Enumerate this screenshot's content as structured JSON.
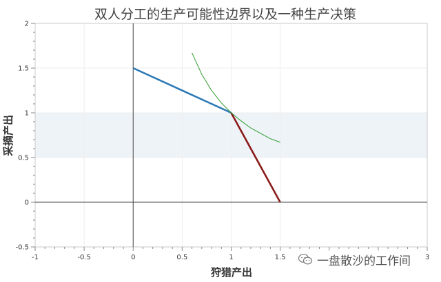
{
  "chart_data": {
    "type": "line",
    "title": "双人分工的生产可能性边界以及一种生产决策",
    "xlabel": "狩猎产出",
    "ylabel": "采摘产出",
    "xlim": [
      -1,
      3
    ],
    "ylim": [
      -0.5,
      2
    ],
    "x_ticks": [
      -1,
      -0.5,
      0,
      0.5,
      1,
      1.5,
      3
    ],
    "y_ticks": [
      -0.5,
      0,
      0.5,
      1,
      1.5,
      2
    ],
    "grid": true,
    "shaded_band": {
      "y_from": 0.5,
      "y_to": 1.0,
      "color": "#eef3f8"
    },
    "series": [
      {
        "points": [
          [
            0,
            1.5
          ],
          [
            1,
            1
          ]
        ],
        "color": "#2e7ab6",
        "style": "solid"
      },
      {
        "points": [
          [
            1,
            1
          ],
          [
            1.5,
            0
          ]
        ],
        "color": "#8b1a1a",
        "style": "solid"
      },
      {
        "points": [
          [
            0.6,
            1.67
          ],
          [
            0.7,
            1.43
          ],
          [
            0.8,
            1.25
          ],
          [
            0.9,
            1.11
          ],
          [
            1.0,
            1.0
          ],
          [
            1.1,
            0.91
          ],
          [
            1.2,
            0.83
          ],
          [
            1.3,
            0.77
          ],
          [
            1.4,
            0.71
          ],
          [
            1.5,
            0.67
          ]
        ],
        "color": "#2e9a2e",
        "style": "thin"
      }
    ],
    "reference_lines": {
      "x0": true,
      "y0": true
    }
  },
  "watermark": {
    "text": "一盘散沙的工作间"
  }
}
